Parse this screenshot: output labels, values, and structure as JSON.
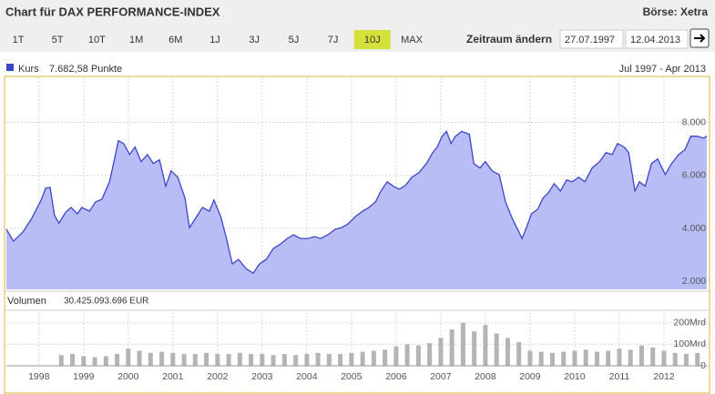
{
  "header": {
    "title": "Chart für DAX PERFORMANCE-INDEX",
    "exchange": "Börse: Xetra"
  },
  "controls": {
    "periods": [
      "1T",
      "5T",
      "10T",
      "1M",
      "6M",
      "1J",
      "3J",
      "5J",
      "7J",
      "10J",
      "MAX"
    ],
    "active": 9,
    "range_label": "Zeitraum ändern",
    "from": "27.07.1997",
    "to": "12.04.2013"
  },
  "chart_data": [
    {
      "type": "area",
      "legend_value": "7.682,58 Punkte",
      "range": "Jul 1997 - Apr 2013",
      "x": [
        1997.27,
        1997.43,
        1997.64,
        1997.84,
        1998.05,
        1998.15,
        1998.25,
        1998.35,
        1998.45,
        1998.6,
        1998.72,
        1998.86,
        1998.96,
        1999.13,
        1999.27,
        1999.41,
        1999.58,
        1999.68,
        1999.78,
        1999.9,
        2000.03,
        2000.15,
        2000.29,
        2000.43,
        2000.56,
        2000.7,
        2000.84,
        2000.96,
        2001.11,
        2001.27,
        2001.37,
        2001.51,
        2001.66,
        2001.82,
        2001.92,
        2002.07,
        2002.19,
        2002.33,
        2002.47,
        2002.64,
        2002.8,
        2002.94,
        2003.09,
        2003.25,
        2003.41,
        2003.56,
        2003.7,
        2003.86,
        2004.03,
        2004.17,
        2004.31,
        2004.47,
        2004.64,
        2004.78,
        2004.92,
        2005.09,
        2005.25,
        2005.39,
        2005.54,
        2005.66,
        2005.8,
        2005.94,
        2006.07,
        2006.21,
        2006.35,
        2006.51,
        2006.68,
        2006.82,
        2006.92,
        2007.03,
        2007.13,
        2007.23,
        2007.33,
        2007.47,
        2007.64,
        2007.74,
        2007.88,
        2008.0,
        2008.15,
        2008.31,
        2008.45,
        2008.6,
        2008.72,
        2008.82,
        2008.92,
        2009.03,
        2009.17,
        2009.29,
        2009.41,
        2009.54,
        2009.68,
        2009.82,
        2009.94,
        2010.09,
        2010.23,
        2010.39,
        2010.56,
        2010.7,
        2010.84,
        2010.96,
        2011.11,
        2011.21,
        2011.35,
        2011.45,
        2011.58,
        2011.72,
        2011.86,
        2012.03,
        2012.17,
        2012.33,
        2012.47,
        2012.6,
        2012.74,
        2012.88,
        2012.96
      ],
      "series": [
        {
          "name": "Kurs",
          "color": "#3c46c8",
          "fill": "#b9bdf5",
          "values": [
            3966,
            3517,
            3862,
            4380,
            5070,
            5517,
            5550,
            4480,
            4200,
            4620,
            4790,
            4550,
            4790,
            4650,
            5000,
            5100,
            5760,
            6520,
            7310,
            7200,
            6790,
            7070,
            6520,
            6790,
            6450,
            6590,
            5590,
            6170,
            5930,
            5140,
            4030,
            4380,
            4790,
            4650,
            5070,
            4450,
            3690,
            2660,
            2830,
            2480,
            2310,
            2660,
            2830,
            3240,
            3410,
            3620,
            3760,
            3620,
            3620,
            3690,
            3620,
            3760,
            3970,
            4030,
            4170,
            4450,
            4650,
            4790,
            5000,
            5410,
            5760,
            5590,
            5480,
            5620,
            5930,
            6100,
            6450,
            6860,
            7070,
            7480,
            7660,
            7200,
            7480,
            7660,
            7550,
            6450,
            6280,
            6520,
            6170,
            6030,
            5000,
            4380,
            3970,
            3620,
            4030,
            4550,
            4720,
            5140,
            5340,
            5690,
            5410,
            5830,
            5760,
            5930,
            5760,
            6280,
            6520,
            6860,
            6790,
            7200,
            7070,
            6860,
            5410,
            5760,
            5590,
            6450,
            6620,
            6030,
            6450,
            6790,
            6970,
            7480,
            7480,
            7410,
            7480
          ]
        }
      ],
      "xlim": [
        1997.27,
        2012.98
      ],
      "ylim": [
        1700,
        9700
      ],
      "yticks": [
        {
          "value": 2000,
          "label": "2.000"
        },
        {
          "value": 4000,
          "label": "4.000"
        },
        {
          "value": 6000,
          "label": "6.000"
        },
        {
          "value": 8000,
          "label": "8.000"
        }
      ],
      "grid": true
    },
    {
      "type": "bar",
      "title": "Volumen",
      "total": "30.425.093.696 EUR",
      "color": "#b4b4b4",
      "x": [
        1998.5,
        1998.75,
        1999,
        1999.25,
        1999.5,
        1999.75,
        2000,
        2000.25,
        2000.5,
        2000.75,
        2001,
        2001.25,
        2001.5,
        2001.75,
        2002,
        2002.25,
        2002.5,
        2002.75,
        2003,
        2003.25,
        2003.5,
        2003.75,
        2004,
        2004.25,
        2004.5,
        2004.75,
        2005,
        2005.25,
        2005.5,
        2005.75,
        2006,
        2006.25,
        2006.5,
        2006.75,
        2007,
        2007.25,
        2007.5,
        2007.75,
        2008,
        2008.25,
        2008.5,
        2008.75,
        2009,
        2009.25,
        2009.5,
        2009.75,
        2010,
        2010.25,
        2010.5,
        2010.75,
        2011,
        2011.25,
        2011.5,
        2011.75,
        2012,
        2012.25,
        2012.5,
        2012.75
      ],
      "values": [
        50,
        55,
        45,
        40,
        45,
        55,
        80,
        70,
        60,
        65,
        60,
        55,
        55,
        60,
        55,
        55,
        60,
        55,
        55,
        50,
        55,
        50,
        55,
        60,
        55,
        55,
        60,
        65,
        70,
        75,
        90,
        100,
        95,
        105,
        130,
        170,
        200,
        160,
        190,
        150,
        130,
        110,
        70,
        65,
        60,
        65,
        70,
        75,
        65,
        70,
        80,
        75,
        95,
        85,
        70,
        60,
        55,
        60
      ],
      "xlim": [
        1997.27,
        2012.98
      ],
      "ylim": [
        0,
        250
      ],
      "yticks": [
        0,
        {
          "value": 100,
          "label": "100Mrd"
        },
        {
          "value": 200,
          "label": "200Mrd"
        }
      ],
      "xticks": [
        1998,
        1999,
        2000,
        2001,
        2002,
        2003,
        2004,
        2005,
        2006,
        2007,
        2008,
        2009,
        2010,
        2011,
        2012
      ],
      "grid": true
    }
  ]
}
